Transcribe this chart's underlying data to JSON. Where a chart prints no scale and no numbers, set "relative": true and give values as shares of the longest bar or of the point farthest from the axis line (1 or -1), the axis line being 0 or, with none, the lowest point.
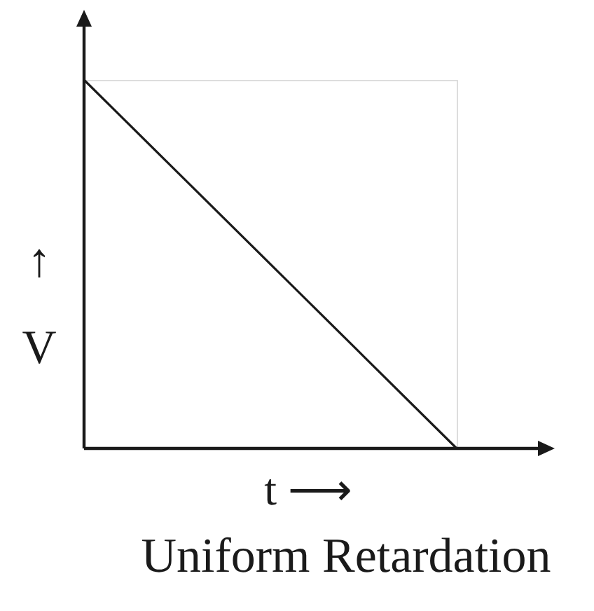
{
  "chart_data": {
    "type": "line",
    "title": "Uniform Retardation",
    "xlabel": "t ⟶",
    "ylabel": "↑ V",
    "categories": [
      null,
      null
    ],
    "values": [
      1,
      0
    ],
    "relative": true,
    "color": "#1a1a1a"
  }
}
